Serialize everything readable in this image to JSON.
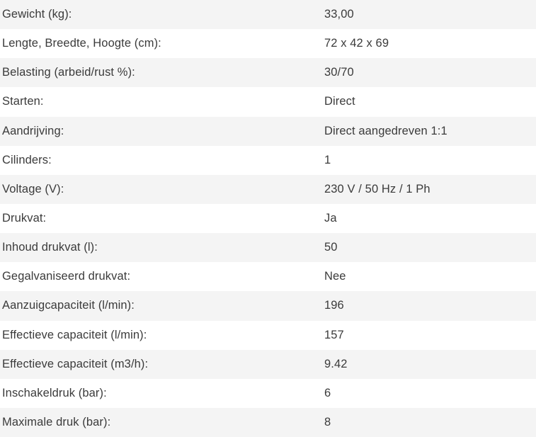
{
  "colors": {
    "row_alt_background": "#f4f4f4",
    "row_background": "#ffffff",
    "text": "#3b3b3b"
  },
  "spec_table": {
    "rows": [
      {
        "label": "Gewicht (kg):",
        "value": "33,00"
      },
      {
        "label": "Lengte, Breedte, Hoogte (cm):",
        "value": "72 x 42 x 69"
      },
      {
        "label": "Belasting (arbeid/rust %):",
        "value": "30/70"
      },
      {
        "label": "Starten:",
        "value": "Direct"
      },
      {
        "label": "Aandrijving:",
        "value": "Direct aangedreven 1:1"
      },
      {
        "label": "Cilinders:",
        "value": "1"
      },
      {
        "label": "Voltage (V):",
        "value": "230 V / 50 Hz / 1 Ph"
      },
      {
        "label": "Drukvat:",
        "value": "Ja"
      },
      {
        "label": "Inhoud drukvat (l):",
        "value": "50"
      },
      {
        "label": "Gegalvaniseerd drukvat:",
        "value": "Nee"
      },
      {
        "label": "Aanzuigcapaciteit (l/min):",
        "value": "196"
      },
      {
        "label": "Effectieve capaciteit (l/min):",
        "value": "157"
      },
      {
        "label": "Effectieve capaciteit (m3/h):",
        "value": "9.42"
      },
      {
        "label": "Inschakeldruk (bar):",
        "value": "6"
      },
      {
        "label": "Maximale druk (bar):",
        "value": "8"
      }
    ]
  }
}
